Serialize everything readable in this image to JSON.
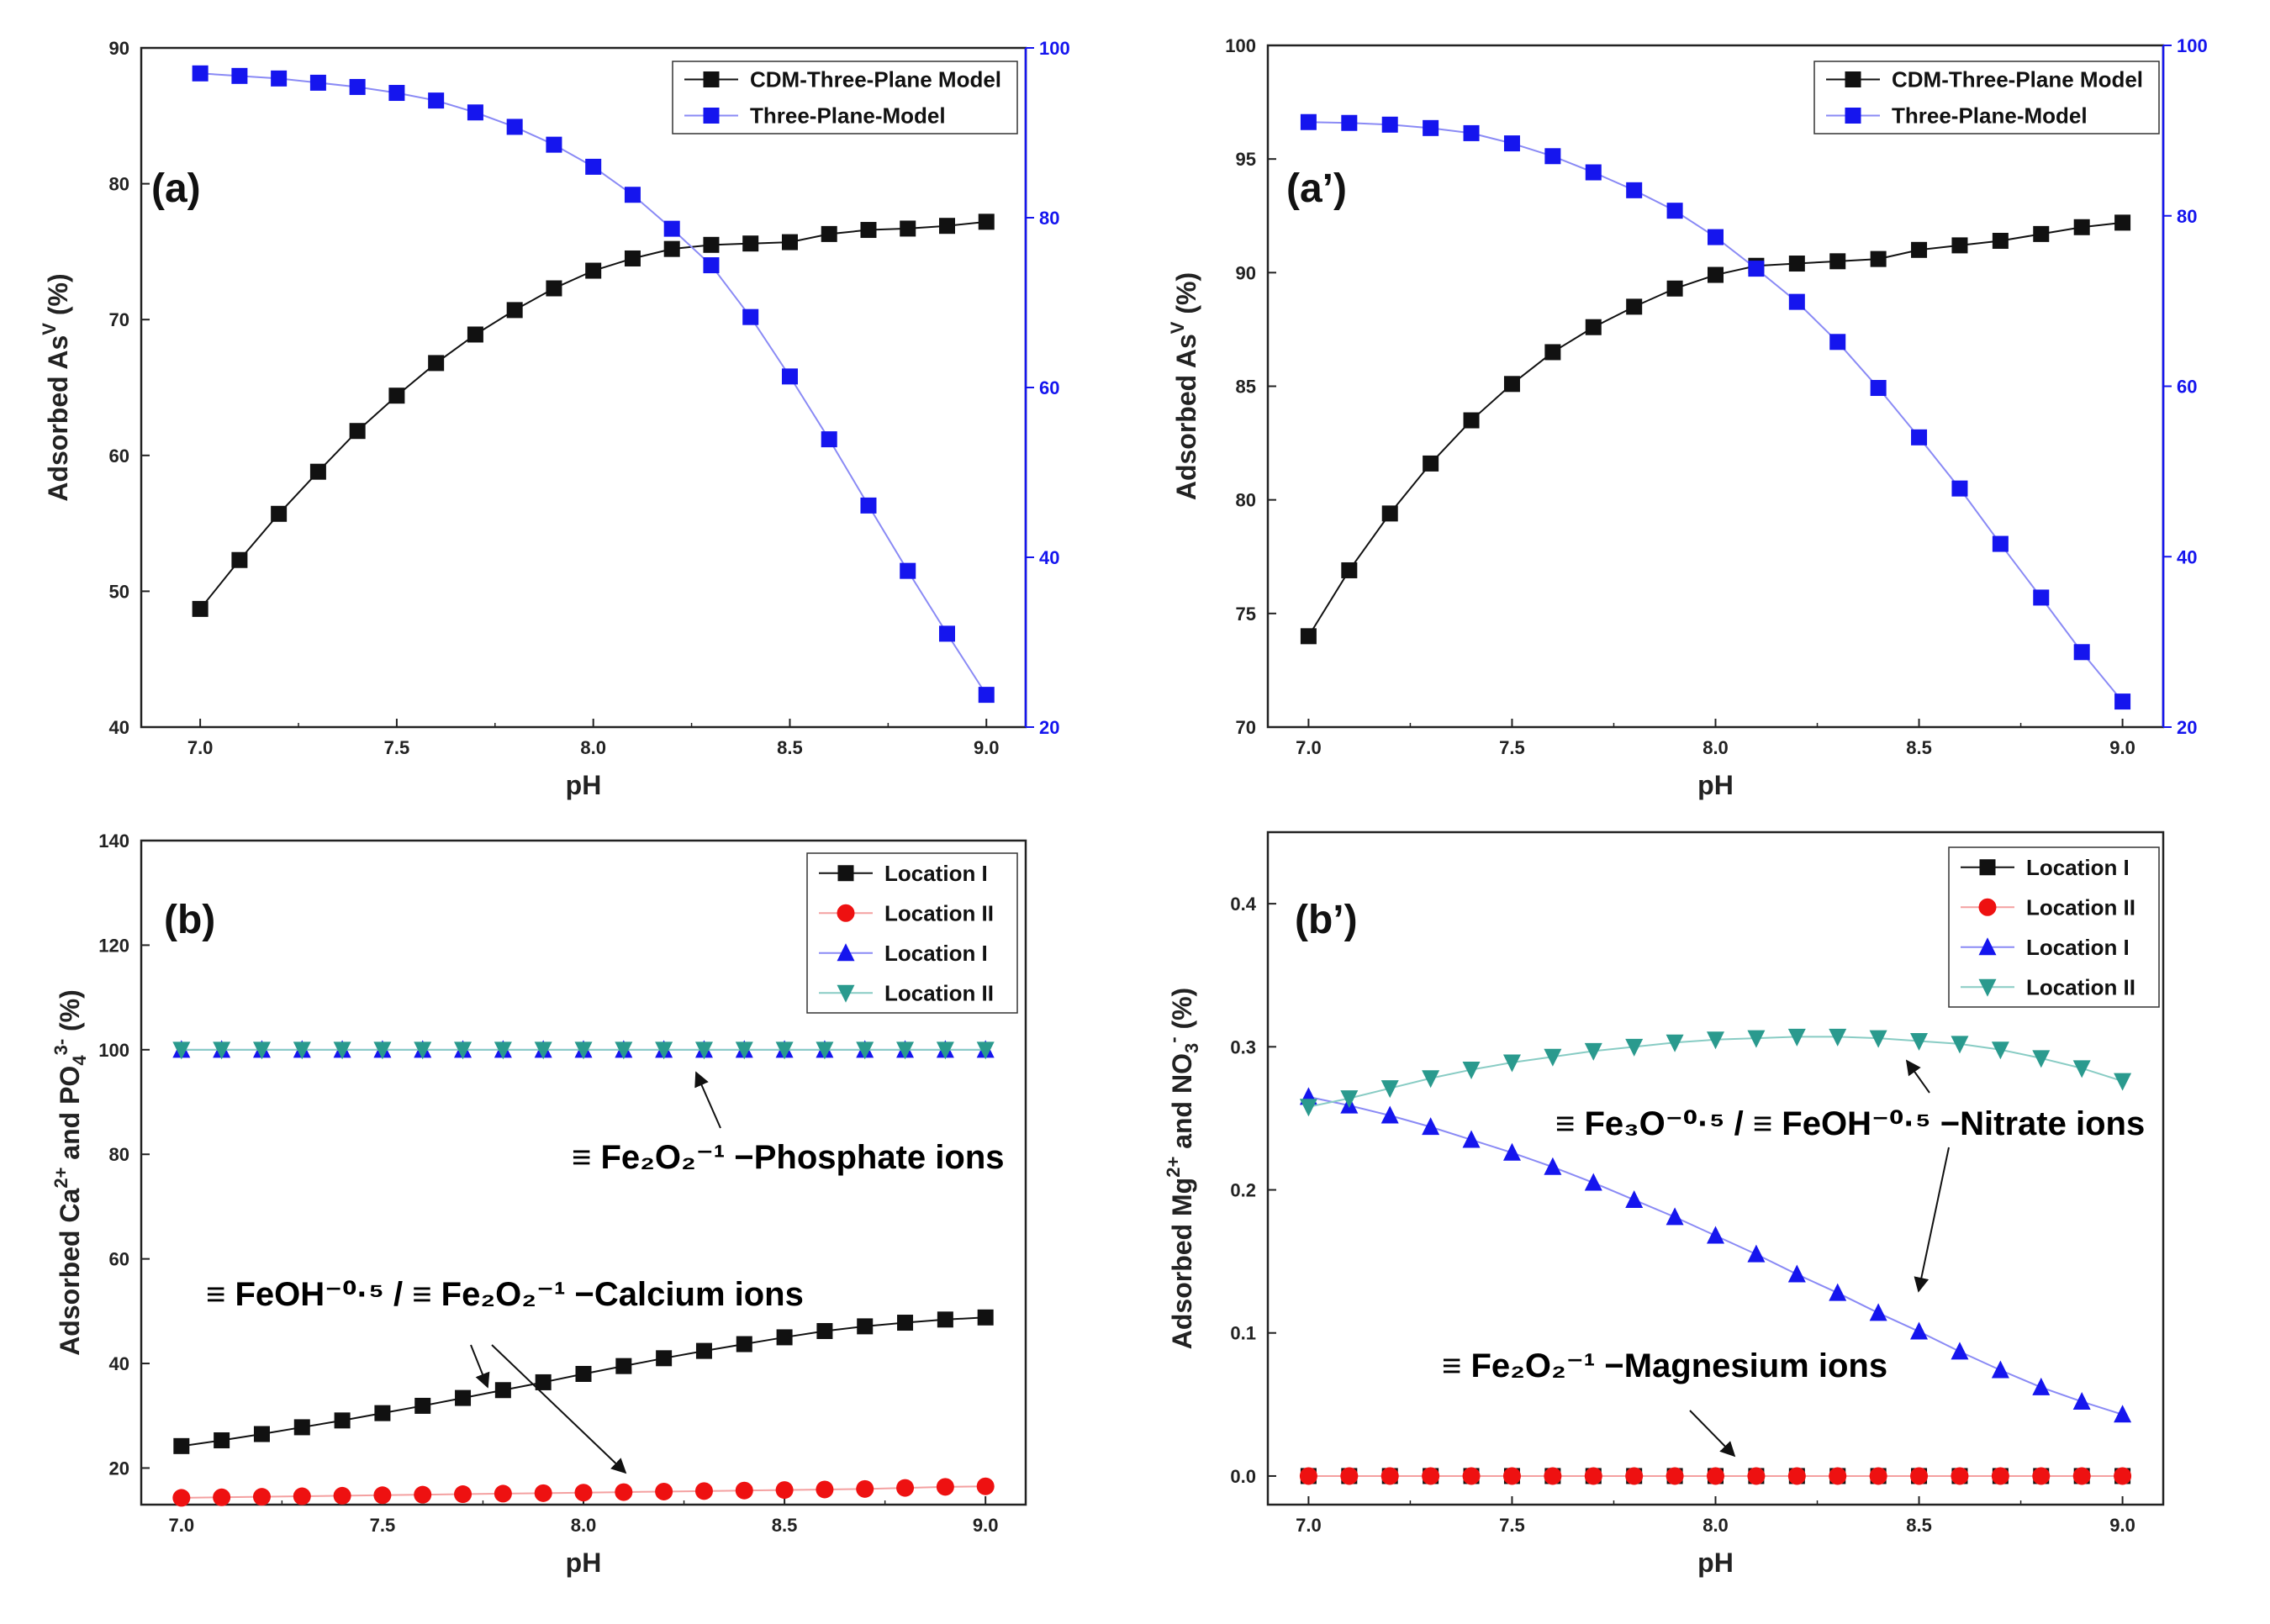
{
  "colors": {
    "black": "#111111",
    "red": "#ee1111",
    "blue": "#1515ee",
    "teal": "#2a9a8e",
    "red_line": "#f4a0a0",
    "blue_line": "#8a8af5",
    "teal_line": "#88ccc4"
  },
  "chart_data": [
    {
      "id": "a",
      "panel_label": "(a)",
      "type": "line",
      "xlabel": "pH",
      "ylabel_pre": "Adsorbed As",
      "ylabel_sup": "V",
      "ylabel_post": " (%)",
      "xlim": [
        6.85,
        9.1
      ],
      "xticks": [
        7.0,
        7.5,
        8.0,
        8.5,
        9.0
      ],
      "xtick_labels": [
        "7.0",
        "7.5",
        "8.0",
        "8.5",
        "9.0"
      ],
      "ylim": [
        40,
        90
      ],
      "yticks": [
        40,
        50,
        60,
        70,
        80,
        90
      ],
      "y2lim": [
        20,
        100
      ],
      "y2ticks": [
        20,
        40,
        60,
        80,
        100
      ],
      "x": [
        7.0,
        7.1,
        7.2,
        7.3,
        7.4,
        7.5,
        7.6,
        7.7,
        7.8,
        7.9,
        8.0,
        8.1,
        8.2,
        8.3,
        8.4,
        8.5,
        8.6,
        8.7,
        8.8,
        8.9,
        9.0
      ],
      "series": [
        {
          "name": "CDM-Three-Plane Model",
          "axis": "left",
          "marker": "square",
          "color": "black",
          "line_color": "black",
          "values": [
            48.7,
            52.3,
            55.7,
            58.8,
            61.8,
            64.4,
            66.8,
            68.9,
            70.7,
            72.3,
            73.6,
            74.5,
            75.2,
            75.5,
            75.6,
            75.7,
            76.3,
            76.6,
            76.7,
            76.9,
            77.2
          ]
        },
        {
          "name": "Three-Plane-Model",
          "axis": "right",
          "marker": "square",
          "color": "blue",
          "line_color": "blue_line",
          "values": [
            97.0,
            96.7,
            96.4,
            95.9,
            95.4,
            94.7,
            93.8,
            92.4,
            90.7,
            88.6,
            86.0,
            82.7,
            78.7,
            74.4,
            68.3,
            61.3,
            53.9,
            46.1,
            38.4,
            31.0,
            23.8
          ]
        }
      ]
    },
    {
      "id": "a2",
      "panel_label": "(a’)",
      "type": "line",
      "xlabel": "pH",
      "ylabel_pre": "Adsorbed As",
      "ylabel_sup": "V",
      "ylabel_post": " (%)",
      "xlim": [
        6.9,
        9.1
      ],
      "xticks": [
        7.0,
        7.5,
        8.0,
        8.5,
        9.0
      ],
      "xtick_labels": [
        "7.0",
        "7.5",
        "8.0",
        "8.5",
        "9.0"
      ],
      "ylim": [
        70,
        100
      ],
      "yticks": [
        70,
        75,
        80,
        85,
        90,
        95,
        100
      ],
      "y2lim": [
        20,
        100
      ],
      "y2ticks": [
        20,
        40,
        60,
        80,
        100
      ],
      "x": [
        7.0,
        7.1,
        7.2,
        7.3,
        7.4,
        7.5,
        7.6,
        7.7,
        7.8,
        7.9,
        8.0,
        8.1,
        8.2,
        8.3,
        8.4,
        8.5,
        8.6,
        8.7,
        8.8,
        8.9,
        9.0
      ],
      "series": [
        {
          "name": "CDM-Three-Plane Model",
          "axis": "left",
          "marker": "square",
          "color": "black",
          "line_color": "black",
          "values": [
            74.0,
            76.9,
            79.4,
            81.6,
            83.5,
            85.1,
            86.5,
            87.6,
            88.5,
            89.3,
            89.9,
            90.3,
            90.4,
            90.5,
            90.6,
            91.0,
            91.2,
            91.4,
            91.7,
            92.0,
            92.2
          ]
        },
        {
          "name": "Three-Plane-Model",
          "axis": "right",
          "marker": "square",
          "color": "blue",
          "line_color": "blue_line",
          "values": [
            91.0,
            90.9,
            90.7,
            90.3,
            89.7,
            88.5,
            87.0,
            85.1,
            83.0,
            80.6,
            77.5,
            73.8,
            69.9,
            65.2,
            59.8,
            54.0,
            48.0,
            41.5,
            35.2,
            28.8,
            23.0
          ]
        }
      ]
    },
    {
      "id": "b",
      "panel_label": "(b)",
      "type": "line",
      "xlabel": "pH",
      "ylabel_pre": "Adsorbed Ca",
      "ylabel_sup": "2+",
      "ylabel_mid": " and PO",
      "ylabel_sub": "4",
      "ylabel_sup2": "3-",
      "ylabel_post": " (%)",
      "xlim": [
        6.9,
        9.1
      ],
      "xticks": [
        7.0,
        7.5,
        8.0,
        8.5,
        9.0
      ],
      "xtick_labels": [
        "7.0",
        "7.5",
        "8.0",
        "8.5",
        "9.0"
      ],
      "ylim": [
        13,
        140
      ],
      "yticks": [
        20,
        40,
        60,
        80,
        100,
        120,
        140
      ],
      "x": [
        7.0,
        7.1,
        7.2,
        7.3,
        7.4,
        7.5,
        7.6,
        7.7,
        7.8,
        7.9,
        8.0,
        8.1,
        8.2,
        8.3,
        8.4,
        8.5,
        8.6,
        8.7,
        8.8,
        8.9,
        9.0
      ],
      "series": [
        {
          "name": "Location I",
          "marker": "square",
          "color": "black",
          "line_color": "black",
          "values": [
            24.2,
            25.3,
            26.5,
            27.8,
            29.1,
            30.5,
            31.9,
            33.4,
            34.9,
            36.4,
            38.0,
            39.5,
            41.0,
            42.4,
            43.7,
            45.0,
            46.2,
            47.1,
            47.8,
            48.4,
            48.8
          ]
        },
        {
          "name": "Location II",
          "marker": "circle",
          "color": "red",
          "line_color": "red_line",
          "values": [
            14.3,
            14.4,
            14.5,
            14.6,
            14.7,
            14.8,
            14.9,
            15.0,
            15.1,
            15.2,
            15.3,
            15.4,
            15.5,
            15.6,
            15.7,
            15.8,
            15.9,
            16.0,
            16.2,
            16.4,
            16.5
          ]
        },
        {
          "name": "Location I",
          "marker": "triangle-up",
          "color": "blue",
          "line_color": "blue_line",
          "values": [
            100,
            100,
            100,
            100,
            100,
            100,
            100,
            100,
            100,
            100,
            100,
            100,
            100,
            100,
            100,
            100,
            100,
            100,
            100,
            100,
            100
          ]
        },
        {
          "name": "Location II",
          "marker": "triangle-down",
          "color": "teal",
          "line_color": "teal_line",
          "values": [
            100,
            100,
            100,
            100,
            100,
            100,
            100,
            100,
            100,
            100,
            100,
            100,
            100,
            100,
            100,
            100,
            100,
            100,
            100,
            100,
            100
          ]
        }
      ]
    },
    {
      "id": "b2",
      "panel_label": "(b’)",
      "type": "line",
      "xlabel": "pH",
      "ylabel_pre": "Adsorbed Mg",
      "ylabel_sup": "2+",
      "ylabel_mid": " and NO",
      "ylabel_sub": "3",
      "ylabel_sup2": "-",
      "ylabel_post": " (%)",
      "xlim": [
        6.9,
        9.1
      ],
      "xticks": [
        7.0,
        7.5,
        8.0,
        8.5,
        9.0
      ],
      "xtick_labels": [
        "7.0",
        "7.5",
        "8.0",
        "8.5",
        "9.0"
      ],
      "ylim": [
        -0.02,
        0.45
      ],
      "yticks": [
        0.0,
        0.1,
        0.2,
        0.3,
        0.4
      ],
      "ytick_labels": [
        "0.0",
        "0.1",
        "0.2",
        "0.3",
        "0.4"
      ],
      "x": [
        7.0,
        7.1,
        7.2,
        7.3,
        7.4,
        7.5,
        7.6,
        7.7,
        7.8,
        7.9,
        8.0,
        8.1,
        8.2,
        8.3,
        8.4,
        8.5,
        8.6,
        8.7,
        8.8,
        8.9,
        9.0
      ],
      "series": [
        {
          "name": "Location I",
          "marker": "square",
          "color": "black",
          "line_color": "black",
          "values": [
            0,
            0,
            0,
            0,
            0,
            0,
            0,
            0,
            0,
            0,
            0,
            0,
            0,
            0,
            0,
            0,
            0,
            0,
            0,
            0,
            0
          ]
        },
        {
          "name": "Location II",
          "marker": "circle",
          "color": "red",
          "line_color": "red_line",
          "values": [
            0,
            0,
            0,
            0,
            0,
            0,
            0,
            0,
            0,
            0,
            0,
            0,
            0,
            0,
            0,
            0,
            0,
            0,
            0,
            0,
            0
          ]
        },
        {
          "name": "Location I",
          "marker": "triangle-up",
          "color": "blue",
          "line_color": "blue_line",
          "values": [
            0.265,
            0.259,
            0.252,
            0.244,
            0.235,
            0.226,
            0.216,
            0.205,
            0.193,
            0.181,
            0.168,
            0.155,
            0.141,
            0.128,
            0.114,
            0.101,
            0.087,
            0.074,
            0.062,
            0.052,
            0.043
          ]
        },
        {
          "name": "Location II",
          "marker": "triangle-down",
          "color": "teal",
          "line_color": "teal_line",
          "values": [
            0.258,
            0.264,
            0.271,
            0.278,
            0.284,
            0.289,
            0.293,
            0.297,
            0.3,
            0.303,
            0.305,
            0.306,
            0.307,
            0.307,
            0.306,
            0.304,
            0.302,
            0.298,
            0.292,
            0.285,
            0.276
          ]
        }
      ]
    }
  ],
  "annotations": {
    "b_phosphate": "≡ Fe₂O₂⁻¹ −Phosphate ions",
    "b_calcium": "≡ FeOH⁻⁰·⁵ / ≡ Fe₂O₂⁻¹ −Calcium ions",
    "b2_nitrate": "≡ Fe₃O⁻⁰·⁵ / ≡ FeOH⁻⁰·⁵ −Nitrate ions",
    "b2_magnesium": "≡ Fe₂O₂⁻¹ −Magnesium ions"
  }
}
